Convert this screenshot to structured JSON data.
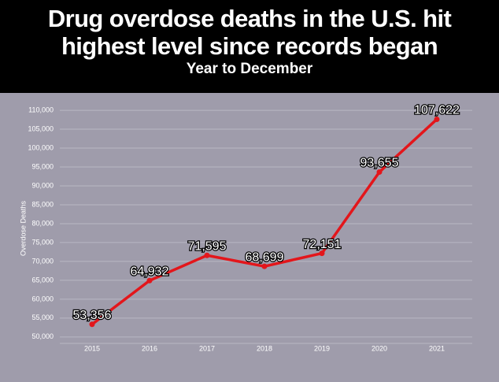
{
  "chart_data": {
    "type": "line",
    "title": "Drug overdose deaths in the U.S. hit highest level since records began",
    "subtitle": "Year to December",
    "y_label": "Overdose Deaths",
    "categories": [
      "2015",
      "2016",
      "2017",
      "2018",
      "2019",
      "2020",
      "2021"
    ],
    "values": [
      53356,
      64932,
      71595,
      68699,
      72151,
      93655,
      107622
    ],
    "value_labels": [
      "53,356",
      "64,932",
      "71,595",
      "68,699",
      "72,151",
      "93,655",
      "107,622"
    ],
    "color": "#e3161b",
    "ylim": [
      48300,
      114600
    ],
    "yticks": [
      {
        "value": 50000,
        "label": "50,000"
      },
      {
        "value": 55000,
        "label": "55,000"
      },
      {
        "value": 60000,
        "label": "60,000"
      },
      {
        "value": 65000,
        "label": "65,000"
      },
      {
        "value": 70000,
        "label": "70,000"
      },
      {
        "value": 75000,
        "label": "75,000"
      },
      {
        "value": 80000,
        "label": "80,000"
      },
      {
        "value": 85000,
        "label": "85,000"
      },
      {
        "value": 90000,
        "label": "90,000"
      },
      {
        "value": 95000,
        "label": "95,000"
      },
      {
        "value": 100000,
        "label": "100,000"
      },
      {
        "value": 105000,
        "label": "105,000"
      },
      {
        "value": 110000,
        "label": "110,000"
      }
    ],
    "grid": true
  }
}
